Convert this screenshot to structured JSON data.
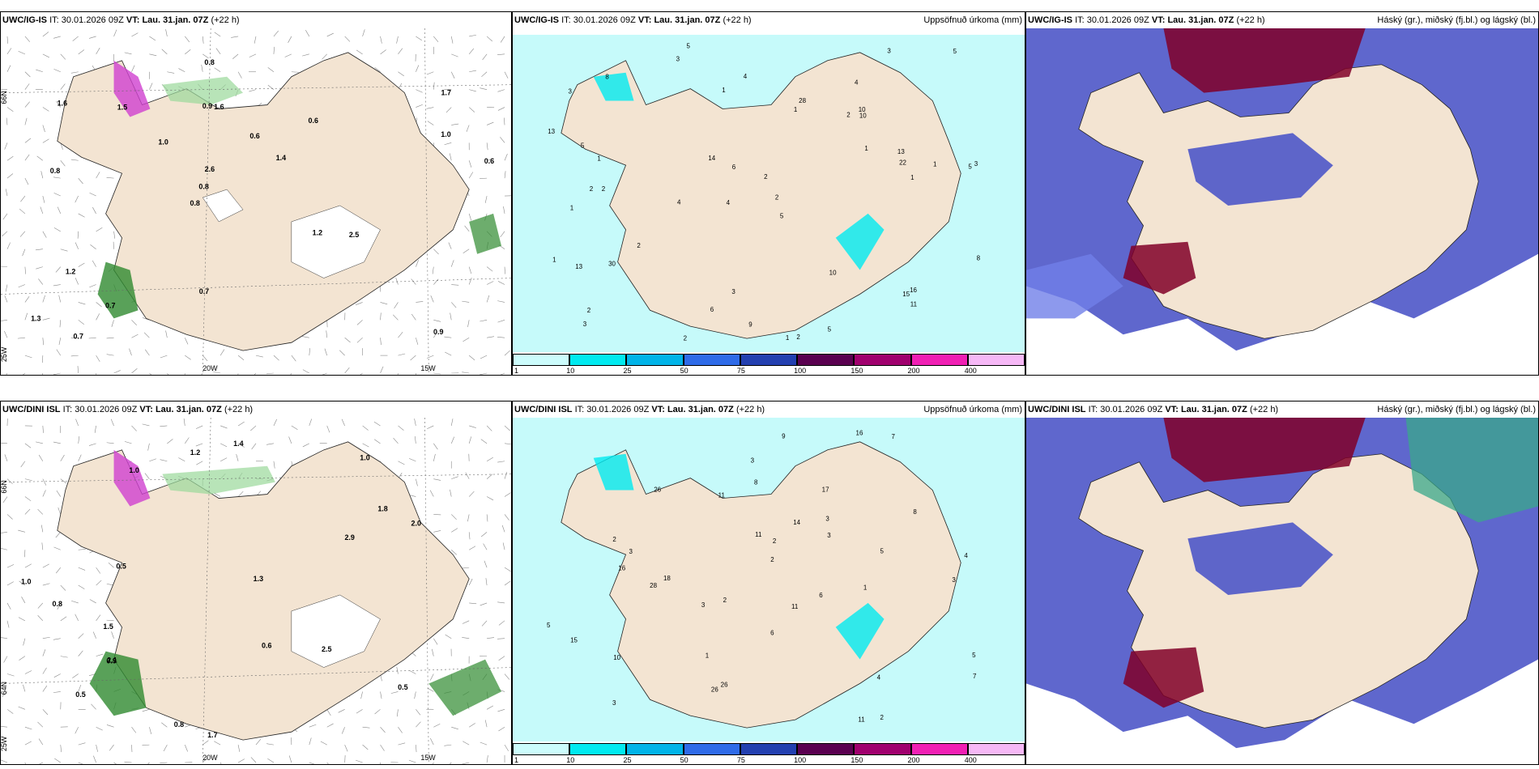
{
  "rows": [
    {
      "model": "UWC/IG-IS",
      "it": "30.01.2026 09Z",
      "vt": "Lau. 31.jan. 07Z",
      "lead": "(+22 h)",
      "wind_values": [
        "0.9",
        "0.8",
        "1.7",
        "0.8",
        "0.6",
        "0.7",
        "0.9",
        "0.6",
        "1.2",
        "1.0",
        "1.3",
        "0.7",
        "1.6",
        "1.4",
        "2.5",
        "1.6",
        "0.8",
        "0.6",
        "1.2",
        "1.0",
        "0.8",
        "0.7",
        "2.6",
        "1.5"
      ],
      "precip_values": [
        "5",
        "4",
        "5",
        "4",
        "5",
        "2",
        "3",
        "2",
        "1",
        "1",
        "2",
        "3",
        "3",
        "4",
        "1",
        "2",
        "3",
        "3",
        "1",
        "2",
        "1",
        "2",
        "3",
        "1",
        "1",
        "5",
        "6",
        "22",
        "16",
        "13",
        "15",
        "28",
        "30",
        "14",
        "10",
        "8",
        "13",
        "6",
        "5",
        "4",
        "2",
        "2",
        "5",
        "8",
        "9",
        "10",
        "11",
        "10",
        "13",
        "2",
        "1",
        "1"
      ]
    },
    {
      "model": "UWC/DINI ISL",
      "it": "30.01.2026 09Z",
      "vt": "Lau. 31.jan. 07Z",
      "lead": "(+22 h)",
      "wind_values": [
        "0.5",
        "1.0",
        "1.0",
        "1.8",
        "0.6",
        "0.5",
        "1.5",
        "2.1",
        "2.0",
        "2.9",
        "0.8",
        "1.4",
        "2.5",
        "1.3",
        "1.7",
        "1.2",
        "0.5",
        "1.0",
        "0.9",
        "0.8"
      ],
      "precip_values": [
        "2",
        "3",
        "3",
        "5",
        "14",
        "11",
        "7",
        "26",
        "2",
        "3",
        "4",
        "3",
        "1",
        "3",
        "2",
        "2",
        "4",
        "5",
        "6",
        "3",
        "8",
        "11",
        "17",
        "16",
        "10",
        "15",
        "26",
        "28",
        "26",
        "6",
        "7",
        "9",
        "8",
        "16",
        "18",
        "11",
        "5",
        "2",
        "3",
        "11",
        "1"
      ]
    }
  ],
  "panels": {
    "precip_title": "Uppsöfnuð úrkoma (mm)",
    "cloud_title": "Háský (gr.), miðský (fj.bl.) og lágský (bl.)",
    "it_label": "IT:",
    "vt_label": "VT:"
  },
  "grid_labels": {
    "lat_66": "66N",
    "lat_64": "64N",
    "lon_20": "20W",
    "lon_15": "15W",
    "lon_25": "25W"
  },
  "colorbar": {
    "ticks": [
      "1",
      "10",
      "25",
      "50",
      "75",
      "100",
      "150",
      "200",
      "400"
    ],
    "colors": [
      "#ccfcfc",
      "#00eaf0",
      "#00b4e8",
      "#2f6be8",
      "#2340b0",
      "#5a0050",
      "#a0006e",
      "#f020b4",
      "#f6b8f6"
    ]
  },
  "colors": {
    "land": "#f3e4d2",
    "sea_precip": "#c6fafa",
    "high_cloud": "#800028",
    "mid_cloud": "#4e57c8",
    "low_cloud": "#7080e8",
    "snow": "#d040d0",
    "rain_green": "#2f8a2f"
  }
}
